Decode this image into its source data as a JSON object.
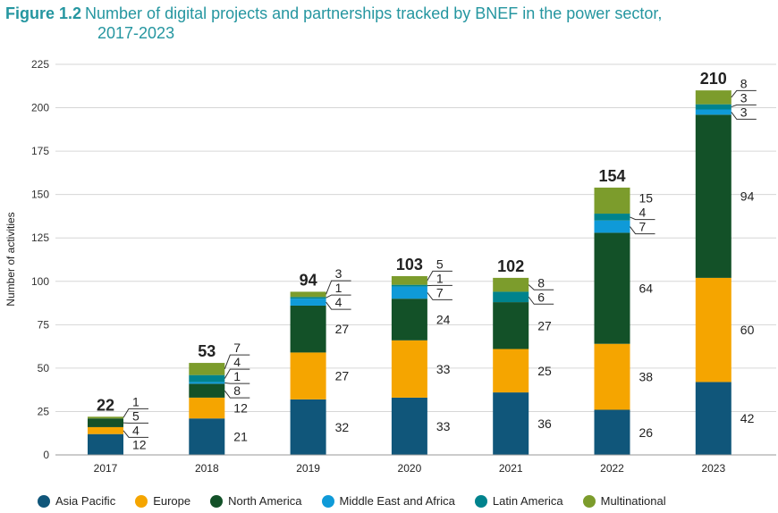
{
  "chart_data": {
    "type": "bar",
    "stacked": true,
    "figure_label": "Figure 1.2",
    "title": "Number of digital projects and partnerships tracked by BNEF in the power sector,",
    "title_line2": "2017-2023",
    "ylabel": "Number of activities",
    "xlabel": "",
    "ylim": [
      0,
      225
    ],
    "yticks": [
      0,
      25,
      50,
      75,
      100,
      125,
      150,
      175,
      200,
      225
    ],
    "grid": true,
    "legend_position": "bottom",
    "categories": [
      "2017",
      "2018",
      "2019",
      "2020",
      "2021",
      "2022",
      "2023"
    ],
    "totals": [
      22,
      53,
      94,
      103,
      102,
      154,
      210
    ],
    "series": [
      {
        "name": "Asia Pacific",
        "color": "#10567a",
        "values": [
          12,
          21,
          32,
          33,
          36,
          26,
          42
        ]
      },
      {
        "name": "Europe",
        "color": "#f5a500",
        "values": [
          4,
          12,
          27,
          33,
          25,
          38,
          60
        ]
      },
      {
        "name": "North America",
        "color": "#135128",
        "values": [
          5,
          8,
          27,
          24,
          27,
          64,
          94
        ]
      },
      {
        "name": "Middle East and Africa",
        "color": "#0f9ad8",
        "values": [
          0,
          1,
          4,
          7,
          0,
          7,
          3
        ]
      },
      {
        "name": "Latin America",
        "color": "#00838d",
        "values": [
          0,
          4,
          1,
          1,
          6,
          4,
          3
        ]
      },
      {
        "name": "Multinational",
        "color": "#7c9c2c",
        "values": [
          1,
          7,
          3,
          5,
          8,
          15,
          8
        ]
      }
    ]
  }
}
